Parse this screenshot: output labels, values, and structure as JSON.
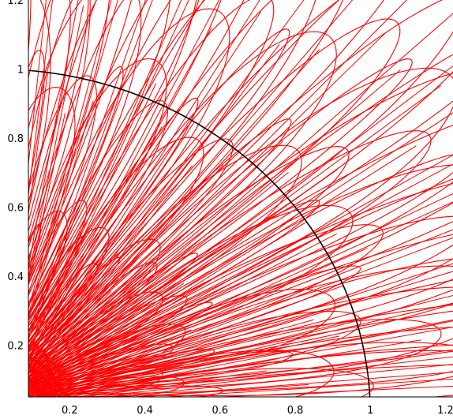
{
  "chart_data": {
    "type": "line",
    "title": "",
    "xlabel": "",
    "ylabel": "",
    "xlim": [
      0.09,
      1.22
    ],
    "ylim": [
      0.05,
      1.2
    ],
    "grid": false,
    "x_ticks": [
      {
        "value": 0.2,
        "label": "0.2"
      },
      {
        "value": 0.4,
        "label": "0.4"
      },
      {
        "value": 0.6,
        "label": "0.6"
      },
      {
        "value": 0.8,
        "label": "0.8"
      },
      {
        "value": 1.0,
        "label": "1"
      },
      {
        "value": 1.2,
        "label": "1.2"
      }
    ],
    "y_ticks": [
      {
        "value": 0.2,
        "label": "0.2"
      },
      {
        "value": 0.4,
        "label": "0.4"
      },
      {
        "value": 0.6,
        "label": "0.6"
      },
      {
        "value": 0.8,
        "label": "0.8"
      },
      {
        "value": 1.0,
        "label": "1"
      },
      {
        "value": 1.2,
        "label": "1.2"
      }
    ],
    "series": [
      {
        "color": "#000000",
        "description": "unit quarter circle",
        "kind": "circle",
        "center": [
          0,
          0
        ],
        "radius": 1.0
      },
      {
        "color": "#ff0000",
        "kind": "radial-loops",
        "rays": [
          {
            "angle_deg": 2,
            "lengths": [
              0.5,
              0.9,
              1.3,
              1.5,
              1.7
            ]
          },
          {
            "angle_deg": 5,
            "lengths": [
              0.4,
              0.8,
              1.2,
              1.5,
              1.7
            ]
          },
          {
            "angle_deg": 9,
            "lengths": [
              0.35,
              0.7,
              1.1,
              1.4,
              1.6
            ]
          },
          {
            "angle_deg": 13,
            "lengths": [
              0.5,
              0.9,
              1.3,
              1.6
            ]
          },
          {
            "angle_deg": 17,
            "lengths": [
              0.4,
              0.85,
              1.25,
              1.5
            ]
          },
          {
            "angle_deg": 21,
            "lengths": [
              0.45,
              0.95,
              1.3,
              1.55
            ]
          },
          {
            "angle_deg": 25,
            "lengths": [
              0.55,
              1.05,
              1.4,
              1.6
            ]
          },
          {
            "angle_deg": 29,
            "lengths": [
              0.5,
              1.0,
              1.35,
              1.6
            ]
          },
          {
            "angle_deg": 33,
            "lengths": [
              0.45,
              0.95,
              1.3,
              1.6
            ]
          },
          {
            "angle_deg": 37,
            "lengths": [
              0.6,
              1.1,
              1.45,
              1.7
            ]
          },
          {
            "angle_deg": 41,
            "lengths": [
              0.5,
              1.0,
              1.4,
              1.7
            ]
          },
          {
            "angle_deg": 45,
            "lengths": [
              0.55,
              1.05,
              1.45,
              1.7
            ]
          },
          {
            "angle_deg": 49,
            "lengths": [
              0.45,
              0.9,
              1.3,
              1.6
            ]
          },
          {
            "angle_deg": 53,
            "lengths": [
              0.4,
              0.85,
              1.25,
              1.5
            ]
          },
          {
            "angle_deg": 57,
            "lengths": [
              0.5,
              0.95,
              1.3,
              1.5
            ]
          },
          {
            "angle_deg": 61,
            "lengths": [
              0.45,
              0.9,
              1.2,
              1.45
            ]
          },
          {
            "angle_deg": 65,
            "lengths": [
              0.55,
              1.0,
              1.3,
              1.45
            ]
          },
          {
            "angle_deg": 69,
            "lengths": [
              0.5,
              0.95,
              1.25,
              1.4
            ]
          },
          {
            "angle_deg": 73,
            "lengths": [
              0.45,
              0.9,
              1.2,
              1.35
            ]
          },
          {
            "angle_deg": 77,
            "lengths": [
              0.4,
              0.85,
              1.15,
              1.3
            ]
          },
          {
            "angle_deg": 81,
            "lengths": [
              0.5,
              0.95,
              1.2,
              1.3
            ]
          },
          {
            "angle_deg": 85,
            "lengths": [
              0.45,
              0.9,
              1.15,
              1.25
            ]
          },
          {
            "angle_deg": 88,
            "lengths": [
              0.5,
              1.0,
              1.2
            ]
          }
        ]
      }
    ]
  }
}
